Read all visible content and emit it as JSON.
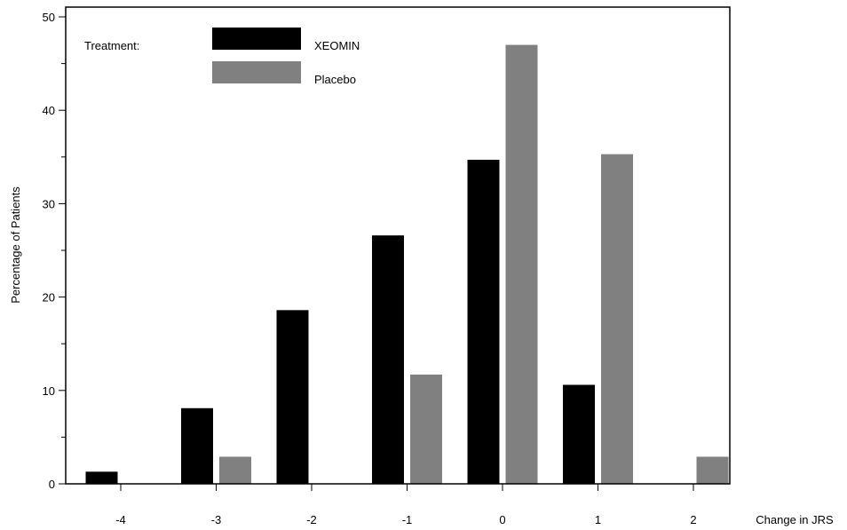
{
  "chart_data": {
    "type": "bar",
    "categories": [
      "-4",
      "-3",
      "-2",
      "-1",
      "0",
      "1",
      "2"
    ],
    "series": [
      {
        "name": "XEOMIN",
        "color": "#000000",
        "values": [
          1.3,
          8.1,
          18.6,
          26.6,
          34.7,
          10.6,
          0
        ]
      },
      {
        "name": "Placebo",
        "color": "#808080",
        "values": [
          0,
          2.9,
          0,
          11.7,
          47.0,
          35.3,
          2.9
        ]
      }
    ],
    "xlabel": "Change in JRS",
    "ylabel": "Percentage of Patients",
    "ylim": [
      0,
      50
    ],
    "yticks": [
      "0",
      "10",
      "20",
      "30",
      "40",
      "50"
    ],
    "legend": {
      "title": "Treatment:",
      "position": "top-left"
    },
    "grid": false
  }
}
